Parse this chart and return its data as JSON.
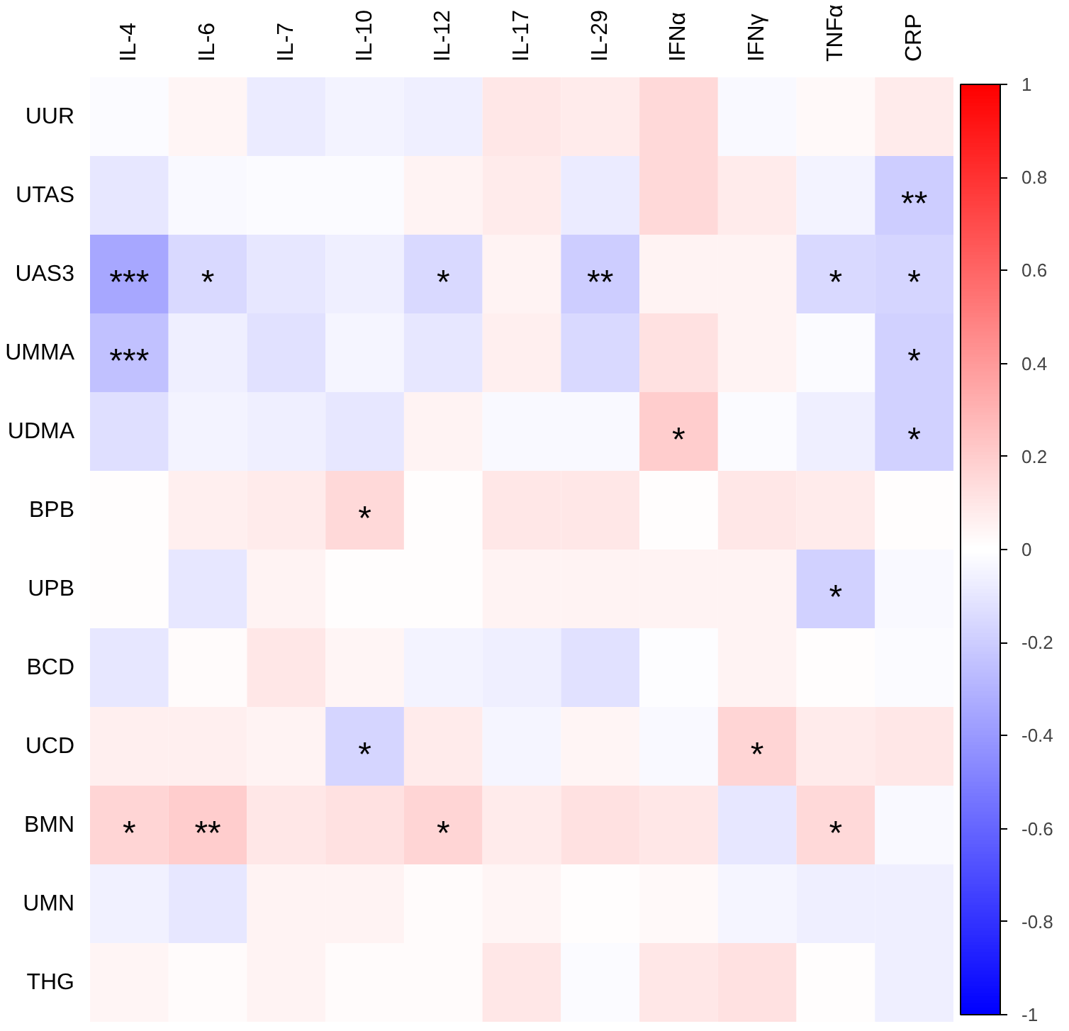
{
  "chart_data": {
    "type": "heatmap",
    "categories": [
      "IL-4",
      "IL-6",
      "IL-7",
      "IL-10",
      "IL-12",
      "IL-17",
      "IL-29",
      "IFNα",
      "IFNγ",
      "TNFα",
      "CRP"
    ],
    "y_categories": [
      "UUR",
      "UTAS",
      "UAS3",
      "UMMA",
      "UDMA",
      "BPB",
      "UPB",
      "BCD",
      "UCD",
      "BMN",
      "UMN",
      "THG"
    ],
    "cells": [
      [
        -0.02,
        0.04,
        -0.08,
        -0.05,
        -0.07,
        0.1,
        0.08,
        0.15,
        -0.03,
        0.03,
        0.08
      ],
      [
        -0.1,
        -0.03,
        -0.02,
        -0.02,
        0.05,
        0.08,
        -0.08,
        0.15,
        0.08,
        -0.05,
        -0.2
      ],
      [
        -0.35,
        -0.15,
        -0.1,
        -0.07,
        -0.15,
        0.05,
        -0.2,
        0.05,
        0.05,
        -0.15,
        -0.17
      ],
      [
        -0.25,
        -0.07,
        -0.12,
        -0.04,
        -0.1,
        0.07,
        -0.15,
        0.12,
        0.05,
        -0.02,
        -0.18
      ],
      [
        -0.13,
        -0.05,
        -0.07,
        -0.1,
        0.05,
        -0.03,
        -0.03,
        0.2,
        -0.02,
        -0.07,
        -0.18
      ],
      [
        0.01,
        0.07,
        0.08,
        0.15,
        0.01,
        0.1,
        0.1,
        0.01,
        0.1,
        0.08,
        0.01
      ],
      [
        0.01,
        -0.1,
        0.05,
        0.01,
        0.01,
        0.05,
        0.05,
        0.05,
        0.05,
        -0.18,
        -0.03
      ],
      [
        -0.1,
        0.02,
        0.1,
        0.04,
        -0.05,
        -0.07,
        -0.12,
        -0.01,
        0.05,
        0.01,
        -0.02
      ],
      [
        0.07,
        0.07,
        0.05,
        -0.17,
        0.08,
        -0.04,
        0.04,
        -0.03,
        0.17,
        0.08,
        0.1
      ],
      [
        0.17,
        0.2,
        0.1,
        0.12,
        0.17,
        0.08,
        0.12,
        0.1,
        -0.1,
        0.15,
        -0.03
      ],
      [
        -0.06,
        -0.1,
        0.05,
        0.05,
        0.02,
        0.04,
        0.01,
        0.03,
        -0.04,
        -0.07,
        -0.07
      ],
      [
        0.04,
        0.02,
        0.05,
        0.02,
        0.02,
        0.1,
        -0.02,
        0.1,
        0.12,
        0.01,
        -0.07
      ]
    ],
    "cell_labels": [
      [
        null,
        null,
        null,
        null,
        null,
        null,
        null,
        null,
        null,
        null,
        null
      ],
      [
        null,
        null,
        null,
        null,
        null,
        null,
        null,
        null,
        null,
        null,
        "**"
      ],
      [
        "***",
        "*",
        null,
        null,
        "*",
        null,
        "**",
        null,
        null,
        "*",
        "*"
      ],
      [
        "***",
        null,
        null,
        null,
        null,
        null,
        null,
        null,
        null,
        null,
        "*"
      ],
      [
        null,
        null,
        null,
        null,
        null,
        null,
        null,
        "*",
        null,
        null,
        "*"
      ],
      [
        null,
        null,
        null,
        "*",
        null,
        null,
        null,
        null,
        null,
        null,
        null
      ],
      [
        null,
        null,
        null,
        null,
        null,
        null,
        null,
        null,
        null,
        "*",
        null
      ],
      [
        null,
        null,
        null,
        null,
        null,
        null,
        null,
        null,
        null,
        null,
        null
      ],
      [
        null,
        null,
        null,
        "*",
        null,
        null,
        null,
        null,
        "*",
        null,
        null
      ],
      [
        "*",
        "**",
        null,
        null,
        "*",
        null,
        null,
        null,
        null,
        "*",
        null
      ],
      [
        null,
        null,
        null,
        null,
        null,
        null,
        null,
        null,
        null,
        null,
        null
      ],
      [
        null,
        null,
        null,
        null,
        null,
        null,
        null,
        null,
        null,
        null,
        null
      ]
    ],
    "clim": [
      -1,
      1
    ],
    "cticks": [
      -1,
      -0.8,
      -0.6,
      -0.4,
      -0.2,
      0,
      0.2,
      0.4,
      0.6,
      0.8,
      1
    ],
    "grid": false
  }
}
